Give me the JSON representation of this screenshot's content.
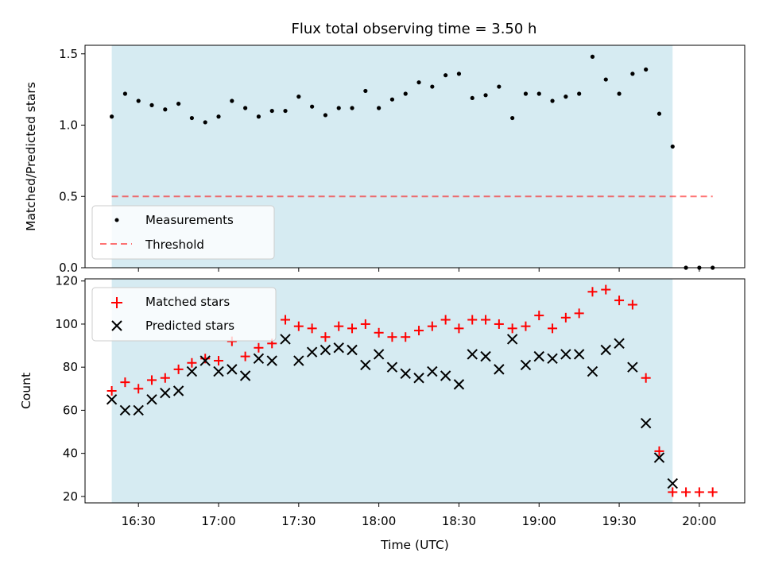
{
  "title": "Flux total observing time = 3.50 h",
  "colors": {
    "shade": "#add8e6",
    "measurement": "#000000",
    "threshold": "#ff0000",
    "matched": "#ff0000",
    "predicted": "#000000"
  },
  "chart_data": [
    {
      "type": "scatter",
      "panel": "top",
      "ylabel": "Matched/Predicted stars",
      "xlabel": "",
      "xlim": [
        "16:10",
        "20:17"
      ],
      "ylim": [
        0,
        1.56
      ],
      "yticks": [
        "0.0",
        "0.5",
        "1.0",
        "1.5"
      ],
      "ytick_values": [
        0,
        0.5,
        1.0,
        1.5
      ],
      "shaded_span": [
        "16:20",
        "19:50"
      ],
      "legend": {
        "placement": "lower-left",
        "entries": [
          "Measurements",
          "Threshold"
        ]
      },
      "threshold": {
        "name": "Threshold",
        "y": 0.5,
        "x": [
          "16:20",
          "20:05"
        ],
        "style": "dashed"
      },
      "series": [
        {
          "name": "Measurements",
          "marker": "dot",
          "x": [
            "16:20",
            "16:25",
            "16:30",
            "16:35",
            "16:40",
            "16:45",
            "16:50",
            "16:55",
            "17:00",
            "17:05",
            "17:10",
            "17:15",
            "17:20",
            "17:25",
            "17:30",
            "17:35",
            "17:40",
            "17:45",
            "17:50",
            "17:55",
            "18:00",
            "18:05",
            "18:10",
            "18:15",
            "18:20",
            "18:25",
            "18:30",
            "18:35",
            "18:40",
            "18:45",
            "18:50",
            "18:55",
            "19:00",
            "19:05",
            "19:10",
            "19:15",
            "19:20",
            "19:25",
            "19:30",
            "19:35",
            "19:40",
            "19:45",
            "19:50",
            "19:55",
            "20:00",
            "20:05"
          ],
          "values": [
            1.06,
            1.22,
            1.17,
            1.14,
            1.11,
            1.15,
            1.05,
            1.02,
            1.06,
            1.17,
            1.12,
            1.06,
            1.1,
            1.1,
            1.2,
            1.13,
            1.07,
            1.12,
            1.12,
            1.24,
            1.12,
            1.18,
            1.22,
            1.3,
            1.27,
            1.35,
            1.36,
            1.19,
            1.21,
            1.27,
            1.05,
            1.22,
            1.22,
            1.17,
            1.2,
            1.22,
            1.48,
            1.32,
            1.22,
            1.36,
            1.39,
            1.08,
            0.85,
            0.0,
            0.0,
            0.0
          ]
        }
      ]
    },
    {
      "type": "scatter",
      "panel": "bottom",
      "ylabel": "Count",
      "xlabel": "Time (UTC)",
      "xlim": [
        "16:10",
        "20:17"
      ],
      "ylim": [
        17,
        121
      ],
      "yticks": [
        "20",
        "40",
        "60",
        "80",
        "100",
        "120"
      ],
      "ytick_values": [
        20,
        40,
        60,
        80,
        100,
        120
      ],
      "xticks": [
        "16:30",
        "17:00",
        "17:30",
        "18:00",
        "18:30",
        "19:00",
        "19:30",
        "20:00"
      ],
      "shaded_span": [
        "16:20",
        "19:50"
      ],
      "legend": {
        "placement": "upper-left",
        "entries": [
          "Matched stars",
          "Predicted stars"
        ]
      },
      "x": [
        "16:20",
        "16:25",
        "16:30",
        "16:35",
        "16:40",
        "16:45",
        "16:50",
        "16:55",
        "17:00",
        "17:05",
        "17:10",
        "17:15",
        "17:20",
        "17:25",
        "17:30",
        "17:35",
        "17:40",
        "17:45",
        "17:50",
        "17:55",
        "18:00",
        "18:05",
        "18:10",
        "18:15",
        "18:20",
        "18:25",
        "18:30",
        "18:35",
        "18:40",
        "18:45",
        "18:50",
        "18:55",
        "19:00",
        "19:05",
        "19:10",
        "19:15",
        "19:20",
        "19:25",
        "19:30",
        "19:35",
        "19:40",
        "19:45",
        "19:50",
        "19:55",
        "20:00",
        "20:05"
      ],
      "series": [
        {
          "name": "Matched stars",
          "marker": "plus",
          "values": [
            69,
            73,
            70,
            74,
            75,
            79,
            82,
            84,
            83,
            92,
            85,
            89,
            91,
            102,
            99,
            98,
            94,
            99,
            98,
            100,
            96,
            94,
            94,
            97,
            99,
            102,
            98,
            102,
            102,
            100,
            98,
            99,
            104,
            98,
            103,
            105,
            115,
            116,
            111,
            109,
            75,
            41,
            22,
            22,
            22,
            22
          ]
        },
        {
          "name": "Predicted stars",
          "marker": "x",
          "values": [
            65,
            60,
            60,
            65,
            68,
            69,
            78,
            83,
            78,
            79,
            76,
            84,
            83,
            93,
            83,
            87,
            88,
            89,
            88,
            81,
            86,
            80,
            77,
            75,
            78,
            76,
            72,
            86,
            85,
            79,
            93,
            81,
            85,
            84,
            86,
            86,
            78,
            88,
            91,
            80,
            54,
            38,
            26,
            null,
            null,
            null
          ]
        }
      ]
    }
  ]
}
